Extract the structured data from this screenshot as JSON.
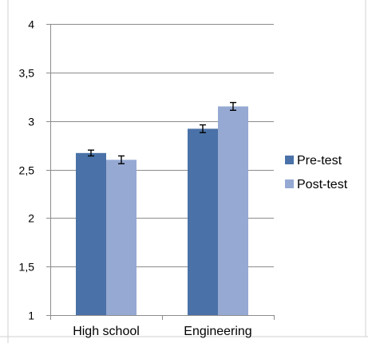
{
  "chart_data": {
    "type": "bar",
    "categories": [
      "High school",
      "Engineering"
    ],
    "series": [
      {
        "name": "Pre-test",
        "values": [
          2.67,
          2.92
        ],
        "errors": [
          0.03,
          0.04
        ],
        "color": "#4a72a8"
      },
      {
        "name": "Post-test",
        "values": [
          2.6,
          3.15
        ],
        "errors": [
          0.04,
          0.04
        ],
        "color": "#95a9d3"
      }
    ],
    "ylim": [
      1,
      4
    ],
    "y_ticks": [
      1,
      1.5,
      2,
      2.5,
      3,
      3.5,
      4
    ],
    "y_tick_labels": [
      "1",
      "1,5",
      "2",
      "2,5",
      "3",
      "3,5",
      "4"
    ],
    "grid": true,
    "legend": "right"
  }
}
